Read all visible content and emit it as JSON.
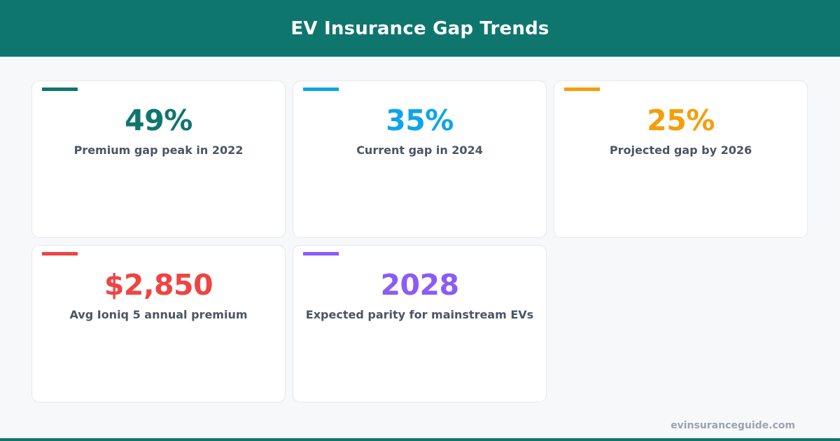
{
  "header": {
    "title": "EV Insurance Gap Trends"
  },
  "colors": {
    "brand": "#0f766e",
    "card_1": "#0f766e",
    "card_2": "#0ea5e9",
    "card_3": "#f59e0b",
    "card_4": "#ef4444",
    "card_5": "#8b5cf6"
  },
  "stats": [
    {
      "value": "49%",
      "label": "Premium gap peak in 2022"
    },
    {
      "value": "35%",
      "label": "Current gap in 2024"
    },
    {
      "value": "25%",
      "label": "Projected gap by 2026"
    },
    {
      "value": "$2,850",
      "label": "Avg Ioniq 5 annual premium"
    },
    {
      "value": "2028",
      "label": "Expected parity for mainstream EVs"
    }
  ],
  "footer": {
    "domain": "evinsuranceguide.com"
  }
}
